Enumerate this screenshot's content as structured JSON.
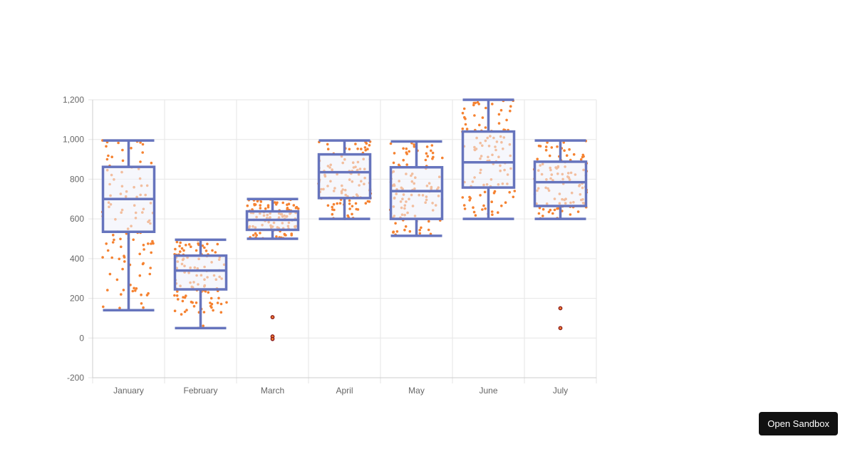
{
  "chart_data": {
    "type": "boxplot",
    "title": "",
    "xlabel": "",
    "ylabel": "",
    "categories": [
      "January",
      "February",
      "March",
      "April",
      "May",
      "June",
      "July"
    ],
    "ylim": [
      -200,
      1200
    ],
    "yticks": [
      -200,
      0,
      200,
      400,
      600,
      800,
      1000,
      1200
    ],
    "ytick_labels": [
      "-200",
      "0",
      "200",
      "400",
      "600",
      "800",
      "1,000",
      "1,200"
    ],
    "grid": true,
    "legend": "none",
    "boxes": [
      {
        "category": "January",
        "min": 140,
        "q1": 535,
        "median": 700,
        "q3": 862,
        "max": 995,
        "outliers": []
      },
      {
        "category": "February",
        "min": 50,
        "q1": 245,
        "median": 340,
        "q3": 415,
        "max": 495,
        "outliers": []
      },
      {
        "category": "March",
        "min": 500,
        "q1": 545,
        "median": 595,
        "q3": 638,
        "max": 700,
        "outliers": [
          105,
          8,
          -5
        ]
      },
      {
        "category": "April",
        "min": 600,
        "q1": 705,
        "median": 835,
        "q3": 925,
        "max": 995,
        "outliers": []
      },
      {
        "category": "May",
        "min": 515,
        "q1": 600,
        "median": 740,
        "q3": 860,
        "max": 990,
        "outliers": []
      },
      {
        "category": "June",
        "min": 600,
        "q1": 758,
        "median": 885,
        "q3": 1040,
        "max": 1200,
        "outliers": []
      },
      {
        "category": "July",
        "min": 600,
        "q1": 665,
        "median": 785,
        "q3": 888,
        "max": 995,
        "outliers": [
          150,
          50
        ]
      }
    ],
    "colors": {
      "box_border": "#6674bd",
      "box_fill": "#eef0fa",
      "points": "#f58231",
      "outlier_border": "#8b1a1a",
      "grid": "#e6e6e6",
      "axis": "#cccccc"
    }
  },
  "open_sandbox_label": "Open Sandbox"
}
